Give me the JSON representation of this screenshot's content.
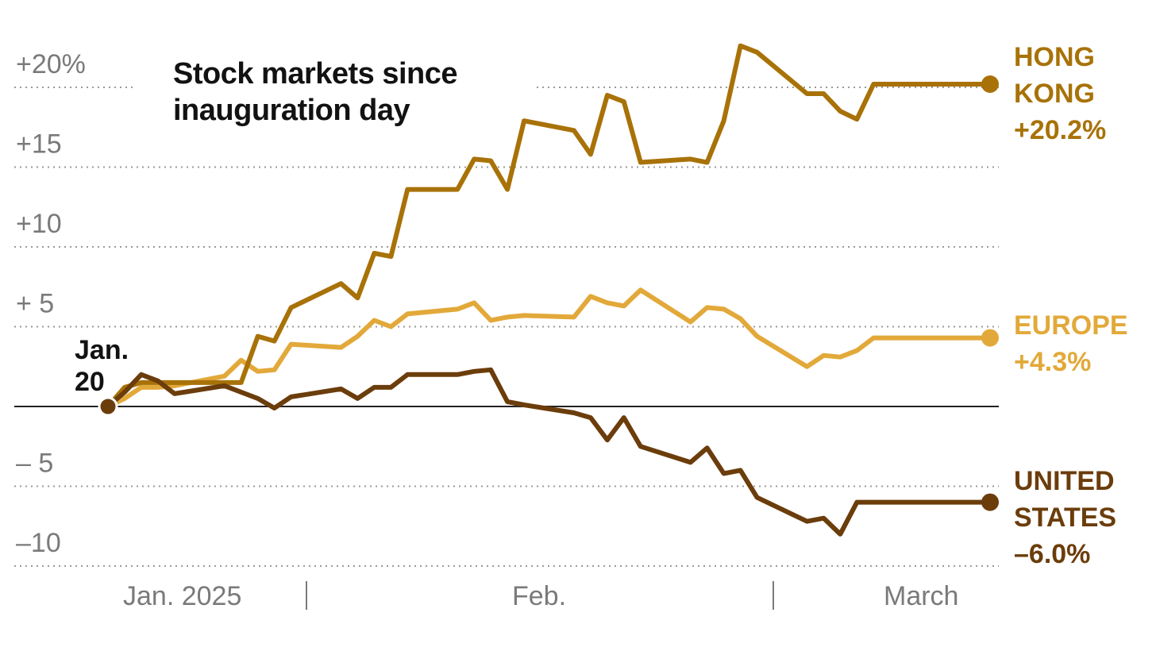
{
  "title": "Stock markets since inauguration day",
  "chart_data": {
    "type": "line",
    "title": "Stock markets since inauguration day",
    "xlabel": "",
    "ylabel": "",
    "ylim": [
      -10,
      20
    ],
    "y_ticks": [
      {
        "value": 20,
        "label": "+20%"
      },
      {
        "value": 15,
        "label": "+15"
      },
      {
        "value": 10,
        "label": "+10"
      },
      {
        "value": 5,
        "label": "+  5"
      },
      {
        "value": -5,
        "label": "–  5"
      },
      {
        "value": -10,
        "label": "–10"
      }
    ],
    "x_ticks": [
      "Jan. 2025",
      "Feb.",
      "March"
    ],
    "start_label": [
      "Jan.",
      "20"
    ],
    "grid": true,
    "legend": "direct labels at line ends",
    "x": [
      "2025-01-20",
      "2025-01-21",
      "2025-01-22",
      "2025-01-23",
      "2025-01-24",
      "2025-01-27",
      "2025-01-28",
      "2025-01-29",
      "2025-01-30",
      "2025-01-31",
      "2025-02-03",
      "2025-02-04",
      "2025-02-05",
      "2025-02-06",
      "2025-02-07",
      "2025-02-10",
      "2025-02-11",
      "2025-02-12",
      "2025-02-13",
      "2025-02-14",
      "2025-02-17",
      "2025-02-18",
      "2025-02-19",
      "2025-02-20",
      "2025-02-21",
      "2025-02-24",
      "2025-02-25",
      "2025-02-26",
      "2025-02-27",
      "2025-02-28",
      "2025-03-03",
      "2025-03-04",
      "2025-03-05",
      "2025-03-06",
      "2025-03-07",
      "2025-03-10",
      "2025-03-11",
      "2025-03-12",
      "2025-03-13",
      "2025-03-14"
    ],
    "series": [
      {
        "name": "HONG KONG",
        "color": "#a87208",
        "end_label": [
          "HONG",
          "KONG",
          "+20.2%"
        ],
        "values": [
          0,
          1.2,
          1.5,
          1.5,
          1.5,
          1.5,
          1.5,
          4.4,
          4.1,
          6.2,
          7.7,
          6.8,
          9.6,
          9.4,
          13.6,
          13.6,
          15.5,
          15.4,
          13.6,
          17.9,
          17.3,
          15.8,
          19.5,
          19.1,
          15.3,
          15.5,
          15.3,
          17.9,
          22.6,
          22.2,
          19.6,
          19.6,
          18.5,
          18.0,
          20.2,
          20.2,
          20.2,
          20.2,
          20.2,
          20.2
        ]
      },
      {
        "name": "EUROPE",
        "color": "#e2a93a",
        "end_label": [
          "EUROPE",
          "+4.3%"
        ],
        "values": [
          0,
          0.5,
          1.2,
          1.2,
          1.3,
          1.9,
          2.9,
          2.2,
          2.3,
          3.9,
          3.7,
          4.4,
          5.4,
          5.0,
          5.8,
          6.1,
          6.5,
          5.4,
          5.6,
          5.7,
          5.6,
          6.9,
          6.5,
          6.3,
          7.3,
          5.3,
          6.2,
          6.1,
          5.5,
          4.4,
          2.5,
          3.2,
          3.1,
          3.5,
          4.3,
          4.3,
          4.3,
          4.3,
          4.3,
          4.3
        ]
      },
      {
        "name": "UNITED STATES",
        "color": "#6b3d0b",
        "end_label": [
          "UNITED",
          "STATES",
          "–6.0%"
        ],
        "values": [
          0,
          0.9,
          2.0,
          1.6,
          0.8,
          1.3,
          0.9,
          0.5,
          -0.1,
          0.6,
          1.1,
          0.5,
          1.2,
          1.2,
          2.0,
          2.0,
          2.2,
          2.3,
          0.3,
          0.1,
          -0.4,
          -0.7,
          -2.1,
          -0.7,
          -2.5,
          -3.5,
          -2.6,
          -4.2,
          -4.0,
          -5.7,
          -7.2,
          -7.0,
          -8.0,
          -6.0,
          -6.0,
          -6.0,
          -6.0,
          -6.0,
          -6.0,
          -6.0
        ]
      }
    ]
  }
}
